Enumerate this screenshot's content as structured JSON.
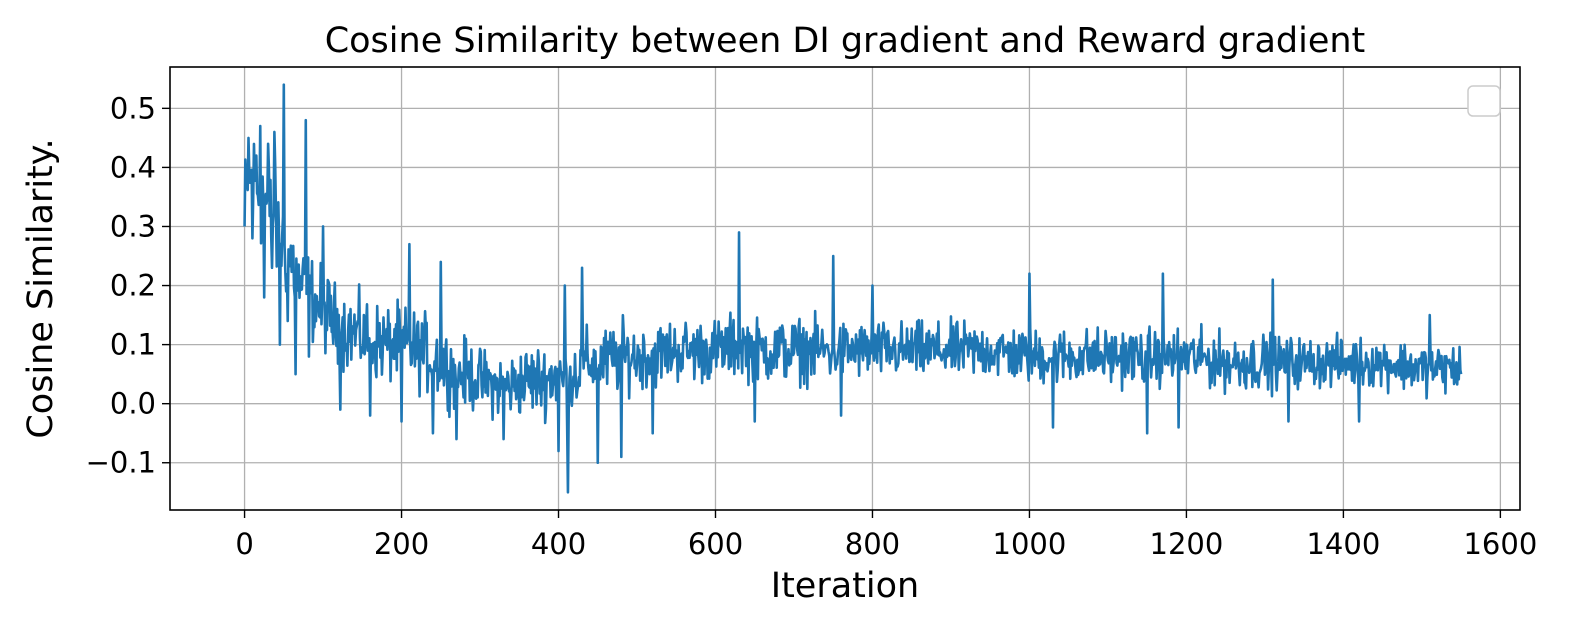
{
  "chart_data": {
    "type": "line",
    "title": "Cosine Similarity between DI gradient and Reward gradient",
    "xlabel": "Iteration",
    "ylabel": "Cosine Similarity.",
    "xlim": [
      -95,
      1625
    ],
    "ylim": [
      -0.18,
      0.57
    ],
    "xticks": [
      0,
      200,
      400,
      600,
      800,
      1000,
      1200,
      1400,
      1600
    ],
    "xtick_labels": [
      "0",
      "200",
      "400",
      "600",
      "800",
      "1000",
      "1200",
      "1400",
      "1600"
    ],
    "yticks": [
      -0.1,
      0.0,
      0.1,
      0.2,
      0.3,
      0.4,
      0.5
    ],
    "ytick_labels": [
      "−0.1",
      "0.0",
      "0.1",
      "0.2",
      "0.3",
      "0.4",
      "0.5"
    ],
    "grid": true,
    "legend": "top-right (empty)",
    "series": [
      {
        "color": "#1f77b4",
        "x": [
          0,
          10,
          20,
          30,
          40,
          50,
          60,
          70,
          80,
          90,
          100,
          120,
          140,
          160,
          180,
          200,
          220,
          240,
          260,
          280,
          300,
          320,
          340,
          360,
          380,
          400,
          410,
          420,
          440,
          460,
          480,
          500,
          520,
          540,
          560,
          580,
          600,
          630,
          650,
          680,
          700,
          720,
          750,
          780,
          800,
          850,
          900,
          950,
          1000,
          1050,
          1100,
          1150,
          1200,
          1250,
          1300,
          1350,
          1400,
          1450,
          1500,
          1550
        ],
        "y": [
          0.34,
          0.38,
          0.36,
          0.33,
          0.3,
          0.27,
          0.24,
          0.2,
          0.19,
          0.17,
          0.16,
          0.13,
          0.12,
          0.11,
          0.1,
          0.1,
          0.09,
          0.08,
          0.06,
          0.05,
          0.04,
          0.03,
          0.03,
          0.04,
          0.04,
          0.05,
          0.03,
          0.05,
          0.07,
          0.07,
          0.08,
          0.08,
          0.08,
          0.09,
          0.09,
          0.09,
          0.09,
          0.1,
          0.09,
          0.09,
          0.09,
          0.09,
          0.09,
          0.09,
          0.09,
          0.09,
          0.09,
          0.09,
          0.08,
          0.08,
          0.08,
          0.08,
          0.08,
          0.07,
          0.07,
          0.07,
          0.07,
          0.07,
          0.06,
          0.06
        ],
        "noise": [
          0.07,
          0.08,
          0.08,
          0.08,
          0.08,
          0.07,
          0.07,
          0.06,
          0.06,
          0.06,
          0.06,
          0.055,
          0.055,
          0.055,
          0.055,
          0.055,
          0.055,
          0.055,
          0.05,
          0.05,
          0.045,
          0.045,
          0.045,
          0.05,
          0.05,
          0.05,
          0.05,
          0.05,
          0.05,
          0.05,
          0.05,
          0.045,
          0.045,
          0.045,
          0.045,
          0.045,
          0.045,
          0.045,
          0.045,
          0.045,
          0.045,
          0.045,
          0.045,
          0.04,
          0.04,
          0.04,
          0.04,
          0.04,
          0.04,
          0.04,
          0.04,
          0.04,
          0.04,
          0.04,
          0.04,
          0.035,
          0.035,
          0.035,
          0.035,
          0.035
        ],
        "spikes": [
          [
            0,
            0.3
          ],
          [
            5,
            0.45
          ],
          [
            10,
            0.28
          ],
          [
            15,
            0.42
          ],
          [
            20,
            0.47
          ],
          [
            25,
            0.18
          ],
          [
            30,
            0.44
          ],
          [
            35,
            0.23
          ],
          [
            38,
            0.46
          ],
          [
            45,
            0.1
          ],
          [
            50,
            0.54
          ],
          [
            55,
            0.14
          ],
          [
            65,
            0.05
          ],
          [
            78,
            0.48
          ],
          [
            82,
            0.08
          ],
          [
            100,
            0.3
          ],
          [
            122,
            -0.01
          ],
          [
            160,
            -0.02
          ],
          [
            200,
            -0.03
          ],
          [
            210,
            0.27
          ],
          [
            240,
            -0.05
          ],
          [
            250,
            0.24
          ],
          [
            270,
            -0.06
          ],
          [
            330,
            -0.06
          ],
          [
            400,
            -0.08
          ],
          [
            408,
            0.2
          ],
          [
            412,
            -0.15
          ],
          [
            430,
            0.23
          ],
          [
            450,
            -0.1
          ],
          [
            480,
            -0.09
          ],
          [
            520,
            -0.05
          ],
          [
            630,
            0.29
          ],
          [
            650,
            -0.03
          ],
          [
            750,
            0.25
          ],
          [
            760,
            -0.02
          ],
          [
            800,
            0.2
          ],
          [
            1000,
            0.22
          ],
          [
            1030,
            -0.04
          ],
          [
            1150,
            -0.05
          ],
          [
            1170,
            0.22
          ],
          [
            1190,
            -0.04
          ],
          [
            1310,
            0.21
          ],
          [
            1330,
            -0.03
          ],
          [
            1420,
            -0.03
          ],
          [
            1510,
            0.15
          ],
          [
            1550,
            0.05
          ]
        ]
      }
    ]
  }
}
